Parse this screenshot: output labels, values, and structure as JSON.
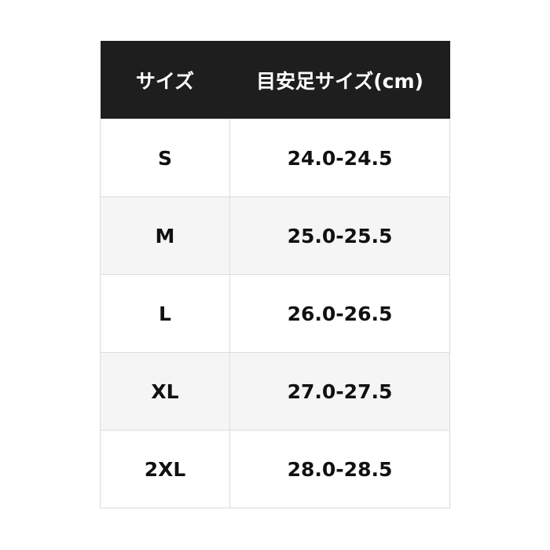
{
  "table": {
    "headers": [
      "サイズ",
      "目安足サイズ(cm)"
    ],
    "rows": [
      [
        "S",
        "24.0-24.5"
      ],
      [
        "M",
        "25.0-25.5"
      ],
      [
        "L",
        "26.0-26.5"
      ],
      [
        "XL",
        "27.0-27.5"
      ],
      [
        "2XL",
        "28.0-28.5"
      ]
    ]
  },
  "colors": {
    "header_bg": "#1e1e1e",
    "alt_row_bg": "#f5f5f5",
    "border": "#dcdcdc"
  }
}
